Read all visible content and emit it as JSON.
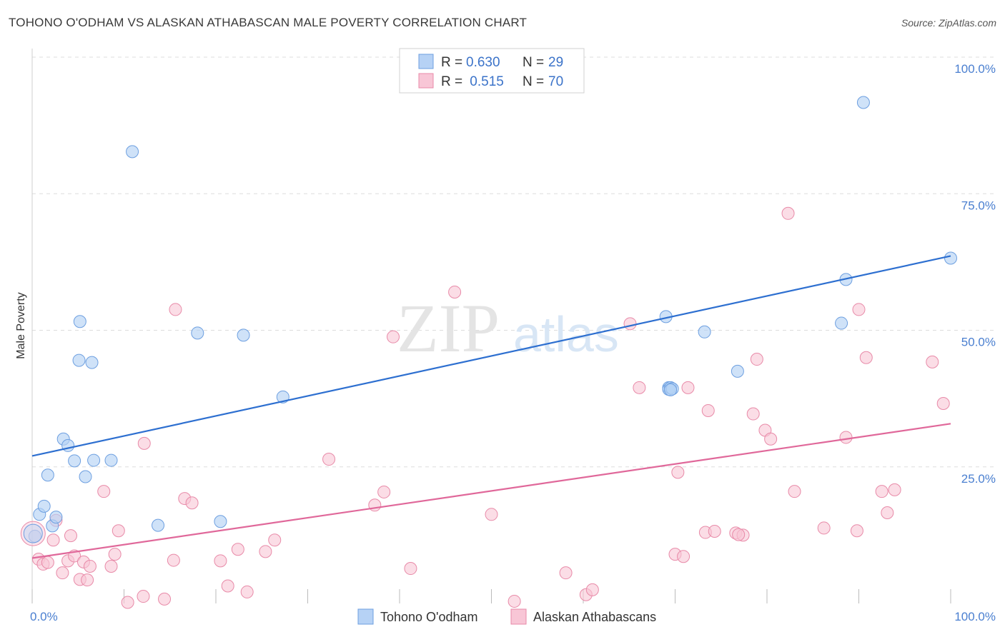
{
  "title": "TOHONO O'ODHAM VS ALASKAN ATHABASCAN MALE POVERTY CORRELATION CHART",
  "source": "Source: ZipAtlas.com",
  "watermark": {
    "zip": "ZIP",
    "atlas": "atlas"
  },
  "colors": {
    "blue_fill": "#b6d2f5",
    "blue_stroke": "#6d9fe0",
    "blue_line": "#2d6fd0",
    "pink_fill": "#f8c6d6",
    "pink_stroke": "#e88aa8",
    "pink_line": "#e0689a",
    "tick_text": "#4a7fd0",
    "grid": "#dddddd"
  },
  "legend": {
    "items": [
      {
        "r_label": "R = ",
        "r_value": "0.630",
        "n_label": "N = ",
        "n_value": "29"
      },
      {
        "r_label": "R = ",
        "r_value": " 0.515",
        "n_label": "N = ",
        "n_value": "70"
      }
    ]
  },
  "chart_data": {
    "type": "scatter",
    "title": "TOHONO O'ODHAM VS ALASKAN ATHABASCAN MALE POVERTY CORRELATION CHART",
    "xlabel": "",
    "ylabel": "Male Poverty",
    "xlim": [
      0,
      100
    ],
    "ylim": [
      0,
      100
    ],
    "x_tick_labels": [
      "0.0%",
      "100.0%"
    ],
    "y_ticks": [
      25,
      50,
      75,
      100
    ],
    "y_tick_labels": [
      "25.0%",
      "50.0%",
      "75.0%",
      "100.0%"
    ],
    "grid": true,
    "series": [
      {
        "name": "Tohono O'odham",
        "color": "blue",
        "trend": {
          "x": [
            0,
            100
          ],
          "y": [
            27.0,
            63.6
          ]
        },
        "points": [
          [
            0.3,
            12.3
          ],
          [
            0.8,
            16.3
          ],
          [
            1.3,
            17.8
          ],
          [
            1.7,
            23.5
          ],
          [
            2.2,
            14.2
          ],
          [
            2.6,
            15.8
          ],
          [
            3.4,
            30.1
          ],
          [
            3.9,
            28.9
          ],
          [
            4.6,
            26.1
          ],
          [
            5.1,
            44.5
          ],
          [
            5.2,
            51.6
          ],
          [
            5.8,
            23.2
          ],
          [
            6.5,
            44.1
          ],
          [
            6.7,
            26.2
          ],
          [
            8.6,
            26.2
          ],
          [
            10.9,
            82.7
          ],
          [
            13.7,
            14.3
          ],
          [
            18.0,
            49.5
          ],
          [
            20.5,
            15.0
          ],
          [
            23.0,
            49.1
          ],
          [
            27.3,
            37.8
          ],
          [
            69.3,
            39.5
          ],
          [
            69.3,
            39.2
          ],
          [
            69.5,
            39.5
          ],
          [
            69.7,
            39.3
          ],
          [
            69.5,
            39.1
          ],
          [
            69.0,
            52.5
          ],
          [
            73.2,
            49.7
          ],
          [
            90.5,
            91.7
          ]
        ],
        "extra_points": [
          [
            76.8,
            42.5
          ],
          [
            88.1,
            51.3
          ],
          [
            88.6,
            59.3
          ],
          [
            100.0,
            63.2
          ]
        ]
      },
      {
        "name": "Alaskan Athabascans",
        "color": "pink",
        "trend": {
          "x": [
            0,
            100
          ],
          "y": [
            8.3,
            32.9
          ]
        },
        "points": [
          [
            0.7,
            8.1
          ],
          [
            1.2,
            7.2
          ],
          [
            1.7,
            7.5
          ],
          [
            2.3,
            11.6
          ],
          [
            2.6,
            15.2
          ],
          [
            3.3,
            5.6
          ],
          [
            3.9,
            7.8
          ],
          [
            4.2,
            12.4
          ],
          [
            4.6,
            8.7
          ],
          [
            5.2,
            4.4
          ],
          [
            5.6,
            7.6
          ],
          [
            6.0,
            4.3
          ],
          [
            6.3,
            6.8
          ],
          [
            7.8,
            20.5
          ],
          [
            8.6,
            6.8
          ],
          [
            9.0,
            9.0
          ],
          [
            9.4,
            13.3
          ],
          [
            10.4,
            0.2
          ],
          [
            12.1,
            1.3
          ],
          [
            12.2,
            29.3
          ],
          [
            14.4,
            0.8
          ],
          [
            15.4,
            7.9
          ],
          [
            15.6,
            53.8
          ],
          [
            16.6,
            19.2
          ],
          [
            17.4,
            18.4
          ],
          [
            20.5,
            7.8
          ],
          [
            21.3,
            3.2
          ],
          [
            22.4,
            9.9
          ],
          [
            23.4,
            2.1
          ],
          [
            25.4,
            9.5
          ],
          [
            26.4,
            11.6
          ],
          [
            32.3,
            26.4
          ],
          [
            37.3,
            18.0
          ],
          [
            38.3,
            20.4
          ],
          [
            39.3,
            48.8
          ],
          [
            41.2,
            6.4
          ],
          [
            50.0,
            16.3
          ],
          [
            52.5,
            0.4
          ],
          [
            58.1,
            5.6
          ],
          [
            60.3,
            1.6
          ],
          [
            61.0,
            2.5
          ],
          [
            65.1,
            51.2
          ],
          [
            66.1,
            39.5
          ],
          [
            70.0,
            9.0
          ],
          [
            70.3,
            24.0
          ],
          [
            70.9,
            8.6
          ],
          [
            71.4,
            39.5
          ],
          [
            73.3,
            13.0
          ],
          [
            73.6,
            35.3
          ],
          [
            74.3,
            13.2
          ],
          [
            76.6,
            12.9
          ],
          [
            77.4,
            12.5
          ],
          [
            78.5,
            34.7
          ],
          [
            78.9,
            44.7
          ],
          [
            79.8,
            31.7
          ],
          [
            80.4,
            30.1
          ],
          [
            82.3,
            71.4
          ],
          [
            83.0,
            20.5
          ],
          [
            86.2,
            13.8
          ],
          [
            88.6,
            30.4
          ],
          [
            89.8,
            13.3
          ],
          [
            90.0,
            53.8
          ],
          [
            90.8,
            45.0
          ],
          [
            92.5,
            20.5
          ],
          [
            93.1,
            16.6
          ],
          [
            93.9,
            20.8
          ],
          [
            98.0,
            44.2
          ],
          [
            99.2,
            36.6
          ],
          [
            76.9,
            12.6
          ],
          [
            46.0,
            57.0
          ]
        ]
      }
    ],
    "bottom_legend": [
      "Tohono O'odham",
      "Alaskan Athabascans"
    ]
  }
}
